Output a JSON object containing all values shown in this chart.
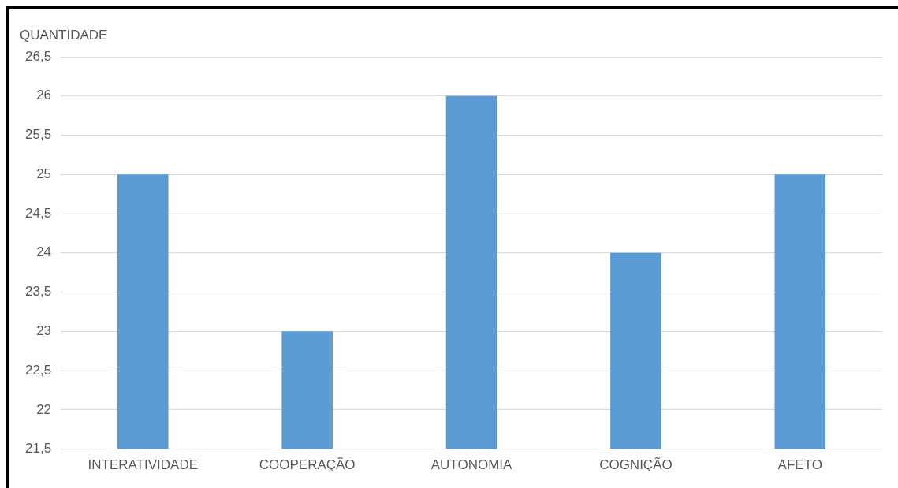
{
  "chart_data": {
    "type": "bar",
    "ylabel": "QUANTIDADE",
    "categories": [
      "INTERATIVIDADE",
      "COOPERAÇÃO",
      "AUTONOMIA",
      "COGNIÇÃO",
      "AFETO"
    ],
    "values": [
      25,
      23,
      26,
      24,
      25
    ],
    "color": "#5b9bd5",
    "ylim": [
      21.5,
      26.5
    ],
    "yticks": [
      {
        "value": 21.5,
        "label": "21,5"
      },
      22,
      {
        "value": 22.5,
        "label": "22,5"
      },
      23,
      {
        "value": 23.5,
        "label": "23,5"
      },
      24,
      {
        "value": 24.5,
        "label": "24,5"
      },
      25,
      {
        "value": 25.5,
        "label": "25,5"
      },
      26,
      {
        "value": 26.5,
        "label": "26,5"
      }
    ],
    "grid": "y",
    "legend": false
  }
}
